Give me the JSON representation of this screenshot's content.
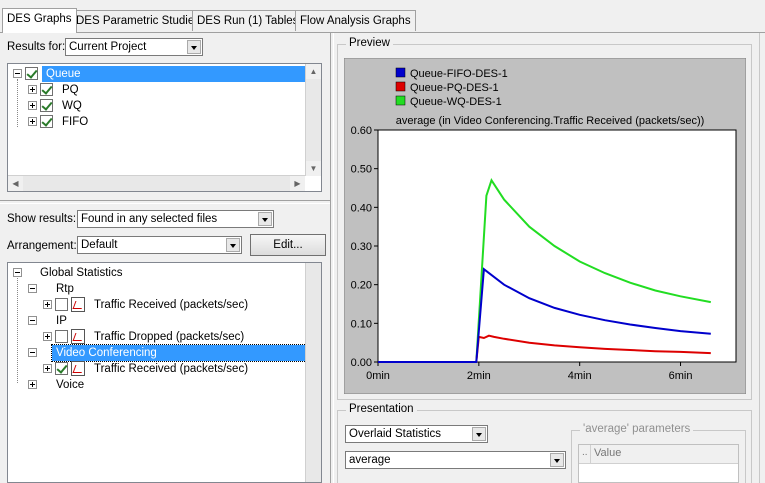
{
  "tabs": [
    {
      "label": "DES Graphs"
    },
    {
      "label": "DES Parametric Studies"
    },
    {
      "label": "DES Run (1) Tables"
    },
    {
      "label": "Flow Analysis Graphs"
    }
  ],
  "results_for": {
    "label": "Results for:",
    "value": "Current Project"
  },
  "scenario_tree": {
    "root": "Queue",
    "children": [
      "PQ",
      "WQ",
      "FIFO"
    ]
  },
  "show_results": {
    "label": "Show results:",
    "value": "Found in any selected files"
  },
  "arrangement": {
    "label": "Arrangement:",
    "value": "Default",
    "edit_label": "Edit..."
  },
  "stats_tree": {
    "root": "Global Statistics",
    "groups": [
      {
        "name": "Rtp",
        "stat": "Traffic Received (packets/sec)",
        "checked": false
      },
      {
        "name": "IP",
        "stat": "Traffic Dropped (packets/sec)",
        "checked": false
      },
      {
        "name": "Video Conferencing",
        "stat": "Traffic Received (packets/sec)",
        "checked": true
      },
      {
        "name": "Voice"
      }
    ]
  },
  "preview": {
    "label": "Preview"
  },
  "presentation": {
    "label": "Presentation",
    "mode": "Overlaid Statistics",
    "filter": "average",
    "params_label": "'average' parameters",
    "params_col_dots": "..",
    "params_col_value": "Value"
  },
  "colors": {
    "fifo": "#0000cc",
    "pq": "#dd0000",
    "wq": "#22dd22",
    "chart_bg": "#ffffff",
    "frame_bg": "#c0c0c0"
  },
  "chart_data": {
    "type": "line",
    "title": "average (in Video Conferencing.Traffic Received (packets/sec))",
    "xlabel": "",
    "ylabel": "",
    "xlim": [
      0,
      7.1
    ],
    "ylim": [
      0,
      0.6
    ],
    "xticks": [
      0,
      2,
      4,
      6
    ],
    "xtick_labels": [
      "0min",
      "2min",
      "4min",
      "6min"
    ],
    "yticks": [
      0.0,
      0.1,
      0.2,
      0.3,
      0.4,
      0.5,
      0.6
    ],
    "ytick_labels": [
      "0.00",
      "0.10",
      "0.20",
      "0.30",
      "0.40",
      "0.50",
      "0.60"
    ],
    "legend_position": "top-left",
    "series": [
      {
        "name": "Queue-FIFO-DES-1",
        "color": "#0000cc",
        "x": [
          0,
          1.95,
          2.1,
          2.5,
          3,
          3.5,
          4,
          4.5,
          5,
          5.5,
          6,
          6.6
        ],
        "y": [
          0,
          0,
          0.24,
          0.2,
          0.165,
          0.14,
          0.122,
          0.108,
          0.097,
          0.088,
          0.08,
          0.073
        ]
      },
      {
        "name": "Queue-PQ-DES-1",
        "color": "#dd0000",
        "x": [
          0,
          1.95,
          2.0,
          2.1,
          2.2,
          2.3,
          2.5,
          3,
          3.5,
          4,
          4.5,
          5,
          5.5,
          6,
          6.6
        ],
        "y": [
          0,
          0,
          0.065,
          0.062,
          0.068,
          0.065,
          0.06,
          0.05,
          0.043,
          0.038,
          0.034,
          0.031,
          0.028,
          0.026,
          0.023
        ]
      },
      {
        "name": "Queue-WQ-DES-1",
        "color": "#22dd22",
        "x": [
          0,
          1.95,
          2.15,
          2.25,
          2.5,
          3,
          3.5,
          4,
          4.5,
          5,
          5.5,
          6,
          6.6
        ],
        "y": [
          0,
          0,
          0.43,
          0.47,
          0.42,
          0.35,
          0.3,
          0.26,
          0.23,
          0.205,
          0.185,
          0.17,
          0.155
        ]
      }
    ]
  }
}
